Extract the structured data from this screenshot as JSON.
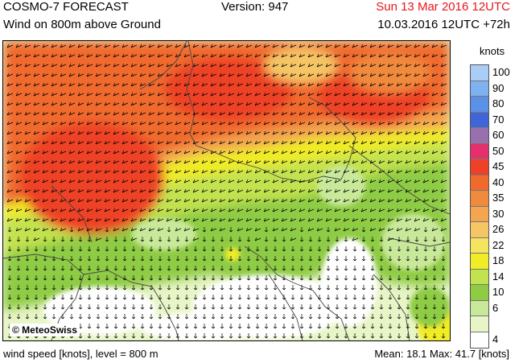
{
  "header": {
    "model": "COSMO-7 FORECAST",
    "version": "Version: 947",
    "valid_time": "Sun 13 Mar 2016 12UTC",
    "subtitle": "Wind on 800m above Ground",
    "run_info": "10.03.2016 12UTC +72h"
  },
  "map": {
    "copyright": "© MeteoSwiss"
  },
  "legend": {
    "unit": "knots",
    "levels": [
      {
        "label": "100",
        "color": "#a9cdf4"
      },
      {
        "label": "90",
        "color": "#7fb2f0"
      },
      {
        "label": "80",
        "color": "#5a90e6"
      },
      {
        "label": "70",
        "color": "#3f66d8"
      },
      {
        "label": "60",
        "color": "#9a6fae"
      },
      {
        "label": "50",
        "color": "#e4316e"
      },
      {
        "label": "45",
        "color": "#ee4228"
      },
      {
        "label": "40",
        "color": "#f06a2e"
      },
      {
        "label": "35",
        "color": "#f08a3c"
      },
      {
        "label": "30",
        "color": "#f3a54f"
      },
      {
        "label": "26",
        "color": "#f6c565"
      },
      {
        "label": "22",
        "color": "#f5e45e"
      },
      {
        "label": "18",
        "color": "#f0ec25"
      },
      {
        "label": "14",
        "color": "#c3e24f"
      },
      {
        "label": "10",
        "color": "#8fcc44"
      },
      {
        "label": "6",
        "color": "#c9e99a"
      },
      {
        "label": "",
        "color": "#e8f5c7"
      },
      {
        "label": "4",
        "color": "#ffffff"
      }
    ]
  },
  "footer": {
    "variable": "wind speed [knots], level = 800 m",
    "stats": "Mean:  18.1 Max:  41.7 [knots]"
  }
}
